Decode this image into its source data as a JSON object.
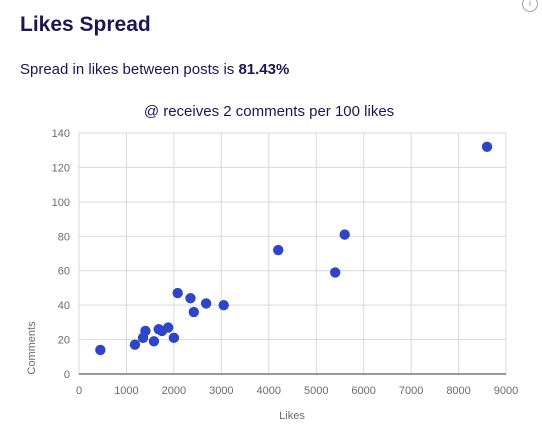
{
  "header": {
    "title": "Likes Spread",
    "subtitle_prefix": "Spread in likes between posts is ",
    "subtitle_value": "81.43%",
    "info_icon": "info-icon"
  },
  "chart_data": {
    "type": "scatter",
    "title": "@ receives 2 comments per 100 likes",
    "xlabel": "Likes",
    "ylabel": "Comments",
    "xlim": [
      0,
      9000
    ],
    "ylim": [
      0,
      140
    ],
    "x_ticks": [
      0,
      1000,
      2000,
      3000,
      4000,
      5000,
      6000,
      7000,
      8000,
      9000
    ],
    "y_ticks": [
      0,
      20,
      40,
      60,
      80,
      100,
      120,
      140
    ],
    "grid": true,
    "point_color": "#2f45c8",
    "points": [
      {
        "x": 450,
        "y": 14
      },
      {
        "x": 1180,
        "y": 17
      },
      {
        "x": 1350,
        "y": 21
      },
      {
        "x": 1400,
        "y": 25
      },
      {
        "x": 1580,
        "y": 19
      },
      {
        "x": 1680,
        "y": 26
      },
      {
        "x": 1750,
        "y": 25
      },
      {
        "x": 1880,
        "y": 27
      },
      {
        "x": 2000,
        "y": 21
      },
      {
        "x": 2080,
        "y": 47
      },
      {
        "x": 2350,
        "y": 44
      },
      {
        "x": 2420,
        "y": 36
      },
      {
        "x": 2680,
        "y": 41
      },
      {
        "x": 3050,
        "y": 40
      },
      {
        "x": 4200,
        "y": 72
      },
      {
        "x": 5400,
        "y": 59
      },
      {
        "x": 5600,
        "y": 81
      },
      {
        "x": 8600,
        "y": 132
      }
    ]
  }
}
